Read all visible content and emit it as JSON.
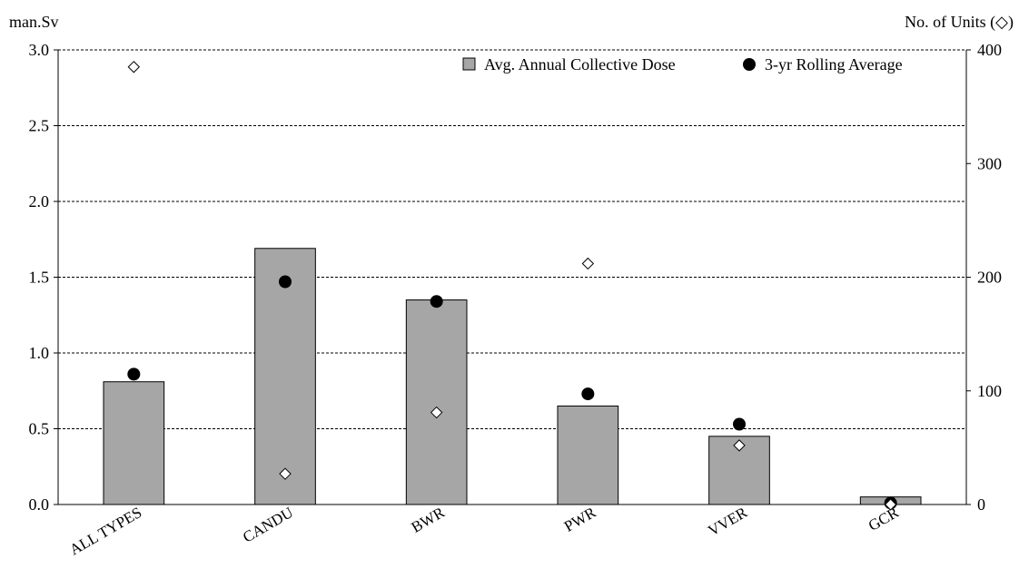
{
  "chart_data": {
    "type": "bar",
    "categories": [
      "ALL TYPES",
      "CANDU",
      "BWR",
      "PWR",
      "VVER",
      "GCR"
    ],
    "series": [
      {
        "name": "Avg. Annual Collective Dose",
        "kind": "bar",
        "axis": "left",
        "color": "#a6a6a6",
        "values": [
          0.81,
          1.69,
          1.35,
          0.65,
          0.45,
          0.05
        ]
      },
      {
        "name": "3-yr Rolling Average",
        "kind": "marker-dot",
        "axis": "left",
        "color": "#000000",
        "values": [
          0.86,
          1.47,
          1.34,
          0.73,
          0.53,
          0.01
        ]
      },
      {
        "name": "",
        "kind": "marker-diamond",
        "axis": "right",
        "color": "#ffffff",
        "values": [
          385,
          27,
          81,
          212,
          52,
          0
        ]
      }
    ],
    "left_axis": {
      "label": "man.Sv",
      "ylim": [
        0,
        3.0
      ],
      "ticks": [
        "0.0",
        "0.5",
        "1.0",
        "1.5",
        "2.0",
        "2.5",
        "3.0"
      ]
    },
    "right_axis": {
      "label": "No. of Units (◇)",
      "ylim": [
        0,
        400
      ],
      "ticks": [
        "0",
        "100",
        "200",
        "300",
        "400"
      ]
    },
    "grid": "horizontal-dashed",
    "legend_placement": "top-right"
  }
}
